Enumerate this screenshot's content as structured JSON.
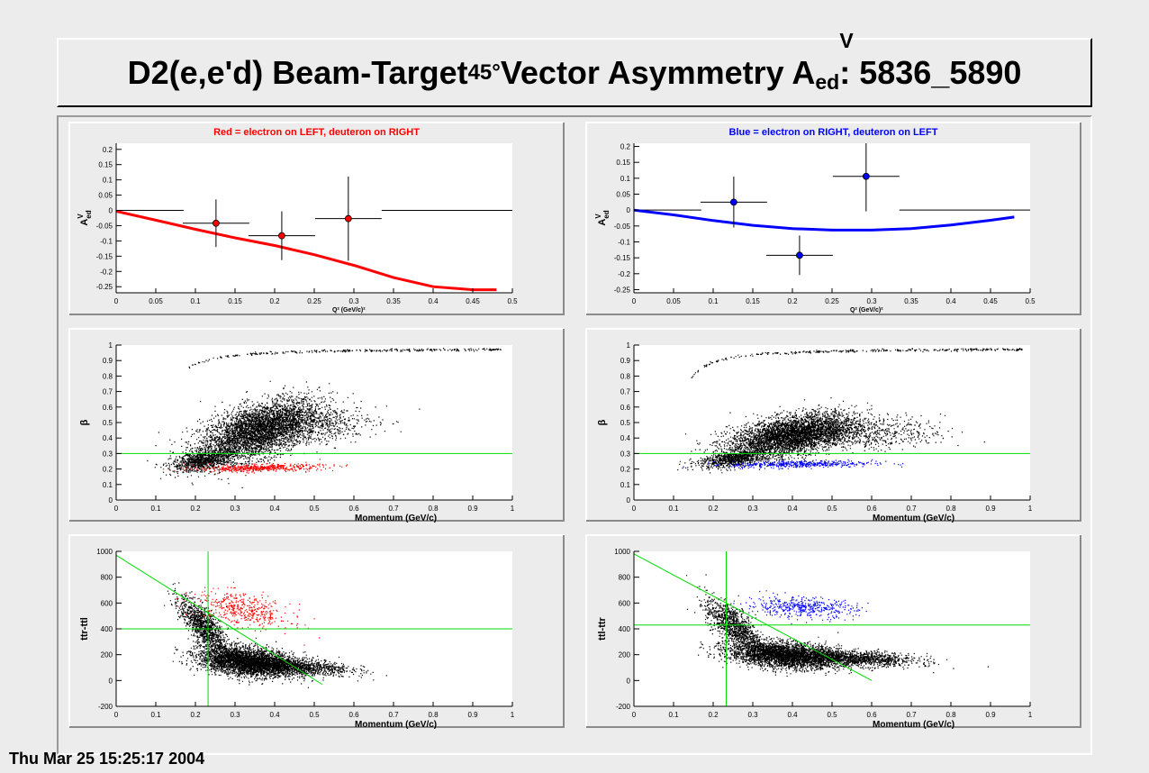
{
  "page": {
    "title": {
      "prefix": "D2(e,e'd) Beam-Target",
      "angle_sub": "45°",
      "middle": " Vector Asymmetry A",
      "sup": "V",
      "sub": "ed",
      "suffix": ": 5836_5890"
    },
    "timestamp": "Thu Mar 25 15:25:17 2004",
    "colors": {
      "background": "#ececec",
      "red": "#ff0000",
      "blue": "#0000ff",
      "green": "#00dd00",
      "black": "#000000"
    }
  },
  "chart_data": [
    {
      "id": "asym-left",
      "type": "scatter",
      "title": "Red = electron on LEFT, deuteron on RIGHT",
      "title_color": "#ff0000",
      "xlabel": "Q² (GeV/c)²",
      "ylabel": "A^V_ed",
      "xlim": [
        0,
        0.5
      ],
      "ylim": [
        -0.27,
        0.22
      ],
      "xticks": [
        0,
        0.05,
        0.1,
        0.15,
        0.2,
        0.25,
        0.3,
        0.35,
        0.4,
        0.45,
        0.5
      ],
      "xtick_labels": [
        "0",
        "0.05",
        "0.1",
        "0.15",
        "0.2",
        "0.25",
        "0.3",
        "0.35",
        "0.4",
        "0.45",
        "0.5"
      ],
      "yticks": [
        -0.25,
        -0.2,
        -0.15,
        -0.1,
        -0.05,
        0,
        0.05,
        0.1,
        0.15,
        0.2
      ],
      "ytick_labels": [
        "-0.25",
        "-0.2",
        "-0.15",
        "-0.1",
        "-0.05",
        "0",
        "0.05",
        "0.1",
        "0.15",
        "0.2"
      ],
      "points": [
        {
          "x": 0.126,
          "y": -0.042,
          "xerr": 0.042,
          "yerr": 0.078
        },
        {
          "x": 0.209,
          "y": -0.083,
          "xerr": 0.042,
          "yerr": 0.08
        },
        {
          "x": 0.293,
          "y": -0.027,
          "xerr": 0.042,
          "yerr": 0.138
        }
      ],
      "zero_segments": [
        [
          0,
          0.085
        ],
        [
          0.335,
          0.5
        ]
      ],
      "point_color": "#ff0000",
      "curve": {
        "color": "#ff0000",
        "x": [
          0,
          0.05,
          0.1,
          0.15,
          0.2,
          0.25,
          0.3,
          0.35,
          0.4,
          0.45,
          0.48
        ],
        "y": [
          -0.003,
          -0.032,
          -0.062,
          -0.09,
          -0.115,
          -0.145,
          -0.18,
          -0.22,
          -0.25,
          -0.26,
          -0.26
        ]
      }
    },
    {
      "id": "asym-right",
      "type": "scatter",
      "title": "Blue = electron on RIGHT, deuteron on LEFT",
      "title_color": "#0000ff",
      "xlabel": "Q² (GeV/c)²",
      "ylabel": "A^V_ed",
      "xlim": [
        0,
        0.5
      ],
      "ylim": [
        -0.26,
        0.21
      ],
      "xticks": [
        0,
        0.05,
        0.1,
        0.15,
        0.2,
        0.25,
        0.3,
        0.35,
        0.4,
        0.45,
        0.5
      ],
      "xtick_labels": [
        "0",
        "0.05",
        "0.1",
        "0.15",
        "0.2",
        "0.25",
        "0.3",
        "0.35",
        "0.4",
        "0.45",
        "0.5"
      ],
      "yticks": [
        -0.25,
        -0.2,
        -0.15,
        -0.1,
        -0.05,
        0,
        0.05,
        0.1,
        0.15,
        0.2
      ],
      "ytick_labels": [
        "-0.25",
        "-0.2",
        "-0.15",
        "-0.1",
        "-0.05",
        "0",
        "0.05",
        "0.1",
        "0.15",
        "0.2"
      ],
      "points": [
        {
          "x": 0.126,
          "y": 0.025,
          "xerr": 0.042,
          "yerr": 0.08
        },
        {
          "x": 0.209,
          "y": -0.142,
          "xerr": 0.042,
          "yerr": 0.062
        },
        {
          "x": 0.293,
          "y": 0.106,
          "xerr": 0.042,
          "yerr": 0.11
        }
      ],
      "zero_segments": [
        [
          0,
          0.085
        ],
        [
          0.335,
          0.5
        ]
      ],
      "point_color": "#0000ff",
      "curve": {
        "color": "#0000ff",
        "x": [
          0,
          0.05,
          0.1,
          0.15,
          0.2,
          0.25,
          0.3,
          0.35,
          0.4,
          0.45,
          0.48
        ],
        "y": [
          0,
          -0.015,
          -0.033,
          -0.048,
          -0.058,
          -0.063,
          -0.063,
          -0.058,
          -0.047,
          -0.032,
          -0.022
        ]
      }
    },
    {
      "id": "beta-left",
      "type": "scatter",
      "xlabel": "Momentum (GeV/c)",
      "ylabel": "β",
      "xlim": [
        0,
        1
      ],
      "ylim": [
        0,
        1
      ],
      "xticks": [
        0,
        0.1,
        0.2,
        0.3,
        0.4,
        0.5,
        0.6,
        0.7,
        0.8,
        0.9,
        1
      ],
      "xtick_labels": [
        "0",
        "0.1",
        "0.2",
        "0.3",
        "0.4",
        "0.5",
        "0.6",
        "0.7",
        "0.8",
        "0.9",
        "1"
      ],
      "yticks": [
        0,
        0.1,
        0.2,
        0.3,
        0.4,
        0.5,
        0.6,
        0.7,
        0.8,
        0.9,
        1
      ],
      "ytick_labels": [
        "0",
        "0.1",
        "0.2",
        "0.3",
        "0.4",
        "0.5",
        "0.6",
        "0.7",
        "0.8",
        "0.9",
        "1"
      ],
      "hlines": [
        {
          "y": 0.3,
          "color": "#00dd00"
        }
      ],
      "clouds": [
        {
          "color": "#000000",
          "n": 4200,
          "cx": 0.36,
          "cy": 0.45,
          "sx": 0.075,
          "sy": 0.1,
          "rho": 0.55
        },
        {
          "color": "#000000",
          "n": 900,
          "cx": 0.22,
          "cy": 0.26,
          "sx": 0.04,
          "sy": 0.035,
          "rho": 0.5
        },
        {
          "color": "#000000",
          "n": 500,
          "cx": 0.5,
          "cy": 0.48,
          "sx": 0.08,
          "sy": 0.06,
          "rho": 0.2
        },
        {
          "color": "#ff0000",
          "n": 500,
          "cx": 0.36,
          "cy": 0.21,
          "sx": 0.08,
          "sy": 0.012,
          "rho": 0.3
        }
      ],
      "tracks": [
        {
          "color": "#000000",
          "n": 300,
          "x0": 0.15,
          "x1": 0.97,
          "mass": 0.000511,
          "shape": "electron"
        }
      ]
    },
    {
      "id": "beta-right",
      "type": "scatter",
      "xlabel": "Momentum (GeV/c)",
      "ylabel": "β",
      "xlim": [
        0,
        1
      ],
      "ylim": [
        0,
        1
      ],
      "xticks": [
        0,
        0.1,
        0.2,
        0.3,
        0.4,
        0.5,
        0.6,
        0.7,
        0.8,
        0.9,
        1
      ],
      "xtick_labels": [
        "0",
        "0.1",
        "0.2",
        "0.3",
        "0.4",
        "0.5",
        "0.6",
        "0.7",
        "0.8",
        "0.9",
        "1"
      ],
      "yticks": [
        0,
        0.1,
        0.2,
        0.3,
        0.4,
        0.5,
        0.6,
        0.7,
        0.8,
        0.9,
        1
      ],
      "ytick_labels": [
        "0",
        "0.1",
        "0.2",
        "0.3",
        "0.4",
        "0.5",
        "0.6",
        "0.7",
        "0.8",
        "0.9",
        "1"
      ],
      "hlines": [
        {
          "y": 0.3,
          "color": "#00dd00"
        }
      ],
      "clouds": [
        {
          "color": "#000000",
          "n": 4200,
          "cx": 0.4,
          "cy": 0.42,
          "sx": 0.08,
          "sy": 0.07,
          "rho": 0.5
        },
        {
          "color": "#000000",
          "n": 800,
          "cx": 0.25,
          "cy": 0.27,
          "sx": 0.045,
          "sy": 0.03,
          "rho": 0.5
        },
        {
          "color": "#000000",
          "n": 600,
          "cx": 0.58,
          "cy": 0.43,
          "sx": 0.1,
          "sy": 0.05,
          "rho": 0.1
        },
        {
          "color": "#0000ff",
          "n": 450,
          "cx": 0.42,
          "cy": 0.235,
          "sx": 0.09,
          "sy": 0.012,
          "rho": 0.2
        }
      ],
      "tracks": [
        {
          "color": "#000000",
          "n": 320,
          "x0": 0.14,
          "x1": 0.98,
          "mass": 0.000511,
          "shape": "electron"
        }
      ]
    },
    {
      "id": "time-left",
      "type": "scatter",
      "xlabel": "Momentum (GeV/c)",
      "ylabel": "ttr-ttl",
      "xlim": [
        0,
        1
      ],
      "ylim": [
        -200,
        1000
      ],
      "xticks": [
        0,
        0.1,
        0.2,
        0.3,
        0.4,
        0.5,
        0.6,
        0.7,
        0.8,
        0.9,
        1
      ],
      "xtick_labels": [
        "0",
        "0.1",
        "0.2",
        "0.3",
        "0.4",
        "0.5",
        "0.6",
        "0.7",
        "0.8",
        "0.9",
        "1"
      ],
      "yticks": [
        -200,
        0,
        200,
        400,
        600,
        800,
        1000
      ],
      "ytick_labels": [
        "-200",
        "0",
        "200",
        "400",
        "600",
        "800",
        "1000"
      ],
      "hlines": [
        {
          "y": 400,
          "color": "#00dd00"
        }
      ],
      "vlines": [
        {
          "x": 0.232,
          "color": "#00dd00"
        }
      ],
      "lines": [
        {
          "x0": 0,
          "y0": 970,
          "x1": 0.52,
          "y1": -30,
          "color": "#00dd00"
        }
      ],
      "clouds": [
        {
          "color": "#000000",
          "n": 3600,
          "cx": 0.33,
          "cy": 150,
          "sx": 0.06,
          "sy": 55,
          "rho": -0.3
        },
        {
          "color": "#000000",
          "n": 1200,
          "cx": 0.22,
          "cy": 420,
          "sx": 0.03,
          "sy": 110,
          "rho": -0.75
        },
        {
          "color": "#000000",
          "n": 1100,
          "cx": 0.45,
          "cy": 110,
          "sx": 0.07,
          "sy": 35,
          "rho": -0.3
        },
        {
          "color": "#ff0000",
          "n": 450,
          "cx": 0.32,
          "cy": 550,
          "sx": 0.06,
          "sy": 70,
          "rho": -0.5
        }
      ]
    },
    {
      "id": "time-right",
      "type": "scatter",
      "xlabel": "Momentum (GeV/c)",
      "ylabel": "ttl-ttr",
      "xlim": [
        0,
        1
      ],
      "ylim": [
        -200,
        1000
      ],
      "xticks": [
        0,
        0.1,
        0.2,
        0.3,
        0.4,
        0.5,
        0.6,
        0.7,
        0.8,
        0.9,
        1
      ],
      "xtick_labels": [
        "0",
        "0.1",
        "0.2",
        "0.3",
        "0.4",
        "0.5",
        "0.6",
        "0.7",
        "0.8",
        "0.9",
        "1"
      ],
      "yticks": [
        -200,
        0,
        200,
        400,
        600,
        800,
        1000
      ],
      "ytick_labels": [
        "-200",
        "0",
        "200",
        "400",
        "600",
        "800",
        "1000"
      ],
      "hlines": [
        {
          "y": 430,
          "color": "#00dd00"
        }
      ],
      "vlines": [
        {
          "x": 0.233,
          "color": "#00dd00"
        }
      ],
      "lines": [
        {
          "x0": 0,
          "y0": 980,
          "x1": 0.6,
          "y1": 0,
          "color": "#00dd00"
        }
      ],
      "clouds": [
        {
          "color": "#000000",
          "n": 3400,
          "cx": 0.38,
          "cy": 200,
          "sx": 0.07,
          "sy": 50,
          "rho": -0.3
        },
        {
          "color": "#000000",
          "n": 1100,
          "cx": 0.25,
          "cy": 430,
          "sx": 0.035,
          "sy": 100,
          "rho": -0.7
        },
        {
          "color": "#000000",
          "n": 1300,
          "cx": 0.55,
          "cy": 175,
          "sx": 0.08,
          "sy": 30,
          "rho": -0.3
        },
        {
          "color": "#0000ff",
          "n": 450,
          "cx": 0.42,
          "cy": 570,
          "sx": 0.07,
          "sy": 40,
          "rho": -0.2
        }
      ]
    }
  ]
}
